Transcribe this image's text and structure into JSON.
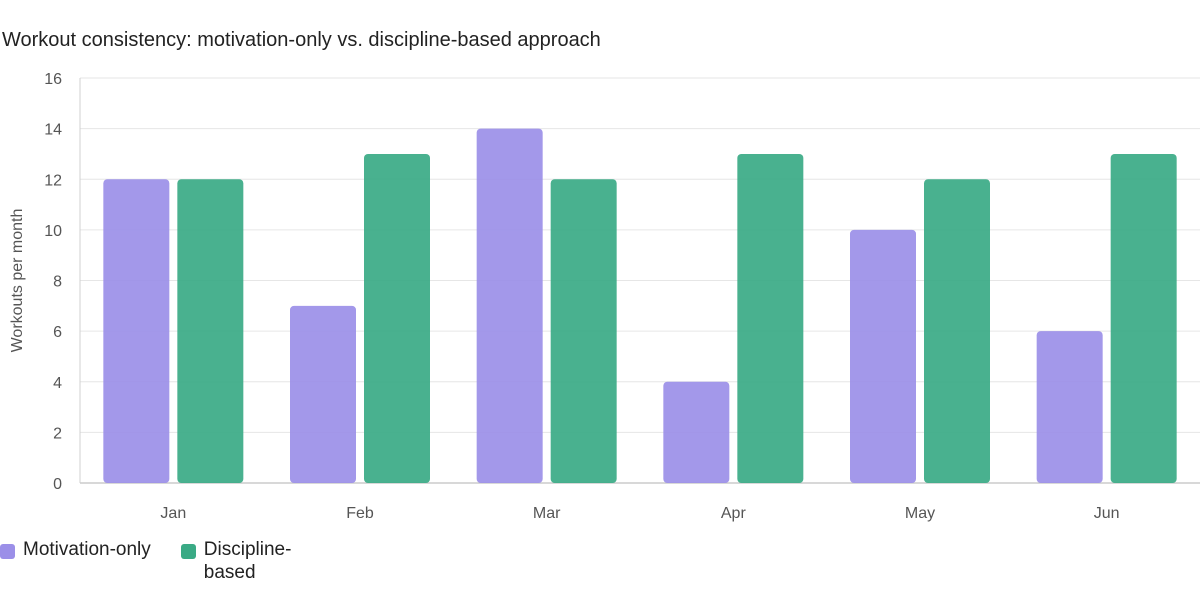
{
  "chart_data": {
    "type": "bar",
    "title": "Workout consistency: motivation-only vs. discipline-based approach",
    "xlabel": "",
    "ylabel": "Workouts per month",
    "categories": [
      "Jan",
      "Feb",
      "Mar",
      "Apr",
      "May",
      "Jun"
    ],
    "ylim": [
      0,
      16
    ],
    "yticks": [
      0,
      2,
      4,
      6,
      8,
      10,
      12,
      14,
      16
    ],
    "grid": true,
    "legend_position": "bottom-left",
    "series": [
      {
        "name": "Motivation-only",
        "color": "#9b8fe8",
        "values": [
          12,
          7,
          14,
          4,
          10,
          6
        ]
      },
      {
        "name": "Discipline-based",
        "color": "#3aaa85",
        "values": [
          12,
          13,
          12,
          13,
          12,
          13
        ]
      }
    ]
  }
}
